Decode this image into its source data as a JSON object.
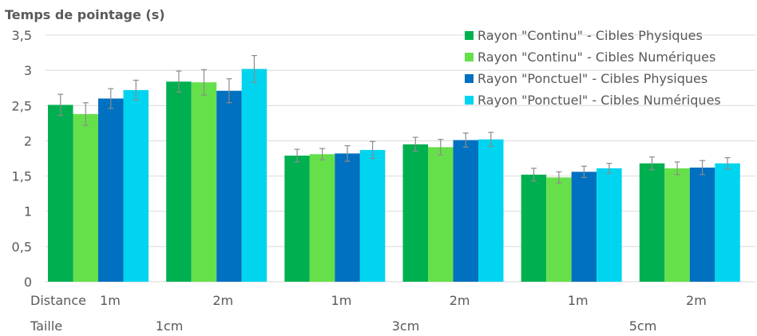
{
  "chart_data": {
    "type": "bar",
    "title": "Temps de pointage (s)",
    "ylabel": "Temps de pointage (s)",
    "ylim": [
      0,
      3.5
    ],
    "yticks": [
      "0",
      "0,5",
      "1",
      "1,5",
      "2",
      "2,5",
      "3",
      "3,5"
    ],
    "grid": true,
    "legend_position": "top-right",
    "row_labels": {
      "distance": "Distance",
      "taille": "Taille"
    },
    "categories": [
      {
        "distance": "1m",
        "taille": "1cm"
      },
      {
        "distance": "2m",
        "taille": "1cm"
      },
      {
        "distance": "1m",
        "taille": "3cm"
      },
      {
        "distance": "2m",
        "taille": "3cm"
      },
      {
        "distance": "1m",
        "taille": "5cm"
      },
      {
        "distance": "2m",
        "taille": "5cm"
      }
    ],
    "taille_groups": [
      "1cm",
      "3cm",
      "5cm"
    ],
    "series": [
      {
        "name": "Rayon \"Continu\" - Cibles Physiques",
        "color": "#00b050",
        "values": [
          2.51,
          2.84,
          1.79,
          1.95,
          1.52,
          1.68
        ],
        "errors": [
          0.15,
          0.15,
          0.09,
          0.1,
          0.09,
          0.09
        ]
      },
      {
        "name": "Rayon \"Continu\" - Cibles Numériques",
        "color": "#66e04a",
        "values": [
          2.38,
          2.83,
          1.81,
          1.91,
          1.48,
          1.61
        ],
        "errors": [
          0.16,
          0.18,
          0.08,
          0.11,
          0.08,
          0.09
        ]
      },
      {
        "name": "Rayon \"Ponctuel\" - Cibles Physiques",
        "color": "#0070c0",
        "values": [
          2.6,
          2.71,
          1.82,
          2.01,
          1.56,
          1.62
        ],
        "errors": [
          0.14,
          0.17,
          0.11,
          0.1,
          0.08,
          0.1
        ]
      },
      {
        "name": "Rayon \"Ponctuel\" - Cibles Numériques",
        "color": "#00d4ef",
        "values": [
          2.72,
          3.02,
          1.87,
          2.02,
          1.61,
          1.68
        ],
        "errors": [
          0.14,
          0.19,
          0.12,
          0.1,
          0.07,
          0.08
        ]
      }
    ]
  }
}
